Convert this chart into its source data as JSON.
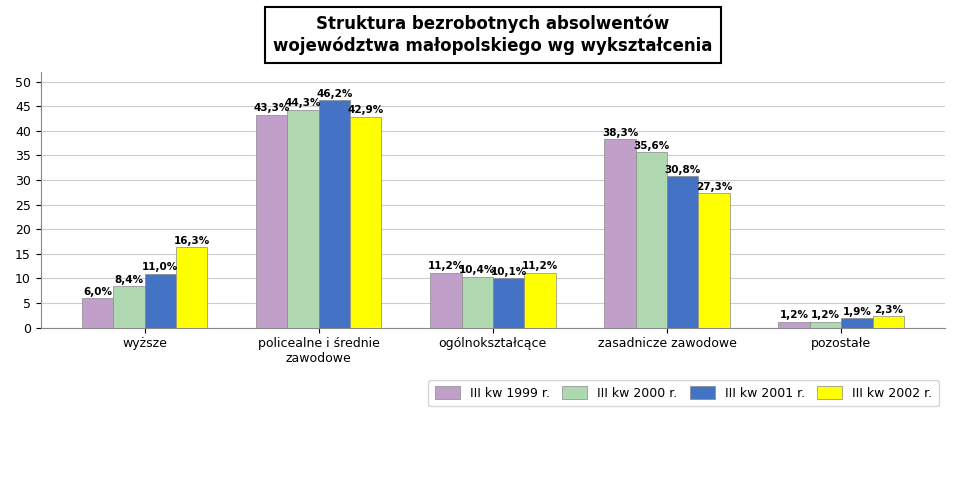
{
  "title_line1": "Struktura bezrobotnych absolwentów",
  "title_line2": "województwa małopolskiego wg wykształcenia",
  "categories": [
    "wyższe",
    "policealne i średnie\nzawodowe",
    "ogólnokształcące",
    "zasadnicze zawodowe",
    "pozostałe"
  ],
  "series_labels": [
    "III kw 1999 r.",
    "III kw 2000 r.",
    "III kw 2001 r.",
    "III kw 2002 r."
  ],
  "colors": [
    "#C0A0C8",
    "#B0D8B0",
    "#4472C4",
    "#FFFF00"
  ],
  "data": [
    [
      6.0,
      43.3,
      11.2,
      38.3,
      1.2
    ],
    [
      8.4,
      44.3,
      10.4,
      35.6,
      1.2
    ],
    [
      11.0,
      46.2,
      10.1,
      30.8,
      1.9
    ],
    [
      16.3,
      42.9,
      11.2,
      27.3,
      2.3
    ]
  ],
  "ylim": [
    0,
    52
  ],
  "yticks": [
    0,
    5,
    10,
    15,
    20,
    25,
    30,
    35,
    40,
    45,
    50
  ],
  "background_color": "#FFFFFF",
  "chart_bg": "#FFFFFF",
  "grid_color": "#CCCCCC",
  "bar_width": 0.18,
  "title_fontsize": 12,
  "label_fontsize": 7.5,
  "tick_fontsize": 9,
  "legend_fontsize": 9
}
